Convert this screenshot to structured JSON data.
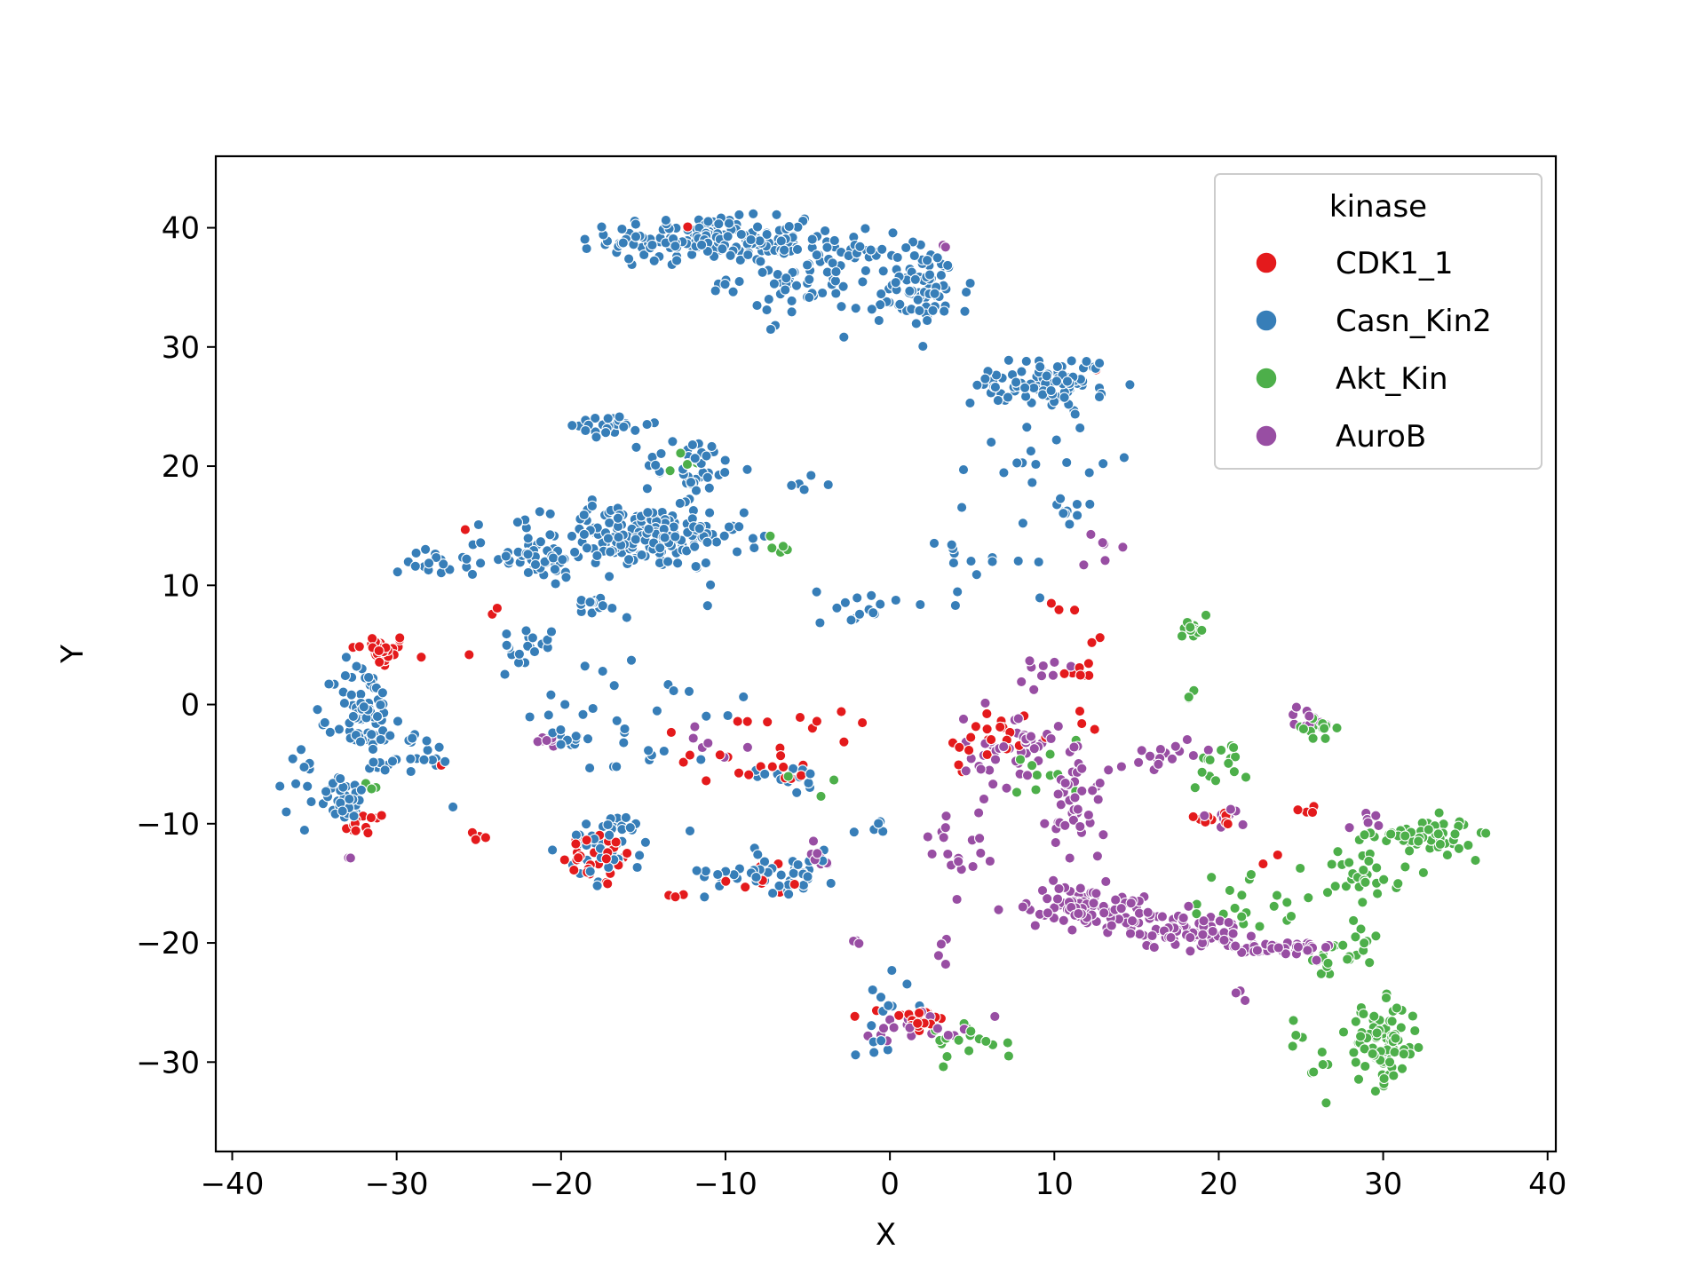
{
  "chart_data": {
    "type": "scatter",
    "title": "",
    "xlabel": "X",
    "ylabel": "Y",
    "xlim": [
      -41,
      40.5
    ],
    "ylim": [
      -37.5,
      46
    ],
    "xticks": [
      -40,
      -30,
      -20,
      -10,
      0,
      10,
      20,
      30,
      40
    ],
    "xtick_labels": [
      "−40",
      "−30",
      "−20",
      "−10",
      "0",
      "10",
      "20",
      "30",
      "40"
    ],
    "yticks": [
      -30,
      -20,
      -10,
      0,
      10,
      20,
      30,
      40
    ],
    "ytick_labels": [
      "−30",
      "−20",
      "−10",
      "0",
      "10",
      "20",
      "30",
      "40"
    ],
    "grid": false,
    "legend": {
      "title": "kinase",
      "placement": "upper right"
    },
    "series": [
      {
        "name": "CDK1_1",
        "color": "#e41a1c",
        "clusters": [
          {
            "center": [
              -31,
              4.5
            ],
            "spread": [
              1.5,
              1.2
            ],
            "count": 30
          },
          {
            "center": [
              -32,
              -10
            ],
            "spread": [
              1.2,
              0.8
            ],
            "count": 12
          },
          {
            "center": [
              -17.5,
              -13
            ],
            "spread": [
              2,
              2
            ],
            "count": 28
          },
          {
            "center": [
              -7,
              -5.5
            ],
            "spread": [
              2,
              1
            ],
            "count": 8
          },
          {
            "center": [
              -8,
              -14.5
            ],
            "spread": [
              3,
              1.2
            ],
            "count": 8
          },
          {
            "center": [
              1.5,
              -26.5
            ],
            "spread": [
              1.5,
              1.2
            ],
            "count": 22
          },
          {
            "center": [
              6,
              -3
            ],
            "spread": [
              2.5,
              2.5
            ],
            "count": 22
          },
          {
            "center": [
              12,
              2
            ],
            "spread": [
              1.5,
              5
            ],
            "count": 12
          },
          {
            "center": [
              20,
              -9.5
            ],
            "spread": [
              1.2,
              0.5
            ],
            "count": 10
          },
          {
            "center": [
              -25,
              -11
            ],
            "spread": [
              0.8,
              0.5
            ],
            "count": 4
          },
          {
            "center": [
              -10,
              -4
            ],
            "spread": [
              4,
              3
            ],
            "count": 12
          },
          {
            "center": [
              -3,
              -1.5
            ],
            "spread": [
              2.5,
              2
            ],
            "count": 6
          },
          {
            "center": [
              25.5,
              -9
            ],
            "spread": [
              1,
              0.5
            ],
            "count": 4
          },
          {
            "center": [
              -24.5,
              10
            ],
            "spread": [
              3,
              6
            ],
            "count": 6
          },
          {
            "center": [
              -13,
              -16
            ],
            "spread": [
              1,
              0.5
            ],
            "count": 3
          },
          {
            "center": [
              13,
              28.5
            ],
            "spread": [
              0.5,
              0.5
            ],
            "count": 1
          },
          {
            "center": [
              -12.5,
              40
            ],
            "spread": [
              0.3,
              0.3
            ],
            "count": 1
          },
          {
            "center": [
              11,
              8
            ],
            "spread": [
              0.8,
              0.8
            ],
            "count": 3
          },
          {
            "center": [
              23,
              -13
            ],
            "spread": [
              0.6,
              0.5
            ],
            "count": 2
          }
        ]
      },
      {
        "name": "Casn_Kin2",
        "color": "#377eb8",
        "clusters": [
          {
            "center": [
              -11,
              39
            ],
            "spread": [
              5,
              1.5
            ],
            "count": 170
          },
          {
            "center": [
              -5,
              36
            ],
            "spread": [
              4,
              3
            ],
            "count": 90
          },
          {
            "center": [
              2,
              35
            ],
            "spread": [
              2.5,
              3
            ],
            "count": 80
          },
          {
            "center": [
              8,
              27
            ],
            "spread": [
              2.5,
              1.5
            ],
            "count": 50
          },
          {
            "center": [
              11,
              27
            ],
            "spread": [
              2,
              2
            ],
            "count": 40
          },
          {
            "center": [
              9,
              21
            ],
            "spread": [
              3,
              2.5
            ],
            "count": 16
          },
          {
            "center": [
              -15,
              14
            ],
            "spread": [
              5,
              2.2
            ],
            "count": 190
          },
          {
            "center": [
              -22,
              12.5
            ],
            "spread": [
              3,
              1.5
            ],
            "count": 45
          },
          {
            "center": [
              -27,
              12
            ],
            "spread": [
              2,
              1.5
            ],
            "count": 20
          },
          {
            "center": [
              -17,
              23.5
            ],
            "spread": [
              2,
              0.8
            ],
            "count": 25
          },
          {
            "center": [
              -12,
              20
            ],
            "spread": [
              2.5,
              2
            ],
            "count": 40
          },
          {
            "center": [
              -32,
              -1
            ],
            "spread": [
              1.5,
              4
            ],
            "count": 80
          },
          {
            "center": [
              -33,
              -8
            ],
            "spread": [
              1.5,
              1.5
            ],
            "count": 35
          },
          {
            "center": [
              -29,
              -4
            ],
            "spread": [
              2,
              1.5
            ],
            "count": 20
          },
          {
            "center": [
              -17,
              -12
            ],
            "spread": [
              2.2,
              2.5
            ],
            "count": 45
          },
          {
            "center": [
              -7,
              -14
            ],
            "spread": [
              3.5,
              1.5
            ],
            "count": 50
          },
          {
            "center": [
              -6,
              -6
            ],
            "spread": [
              2,
              1
            ],
            "count": 15
          },
          {
            "center": [
              -18,
              8.5
            ],
            "spread": [
              1.5,
              0.6
            ],
            "count": 15
          },
          {
            "center": [
              -22,
              5
            ],
            "spread": [
              1.2,
              1.2
            ],
            "count": 18
          },
          {
            "center": [
              -2,
              8
            ],
            "spread": [
              2,
              1.5
            ],
            "count": 15
          },
          {
            "center": [
              -36,
              -5
            ],
            "spread": [
              1,
              4
            ],
            "count": 10
          },
          {
            "center": [
              -15,
              -1
            ],
            "spread": [
              6,
              6
            ],
            "count": 35
          },
          {
            "center": [
              0,
              -25
            ],
            "spread": [
              2,
              3
            ],
            "count": 15
          },
          {
            "center": [
              11,
              16
            ],
            "spread": [
              1,
              1
            ],
            "count": 10
          },
          {
            "center": [
              -20,
              -3
            ],
            "spread": [
              1.5,
              0.8
            ],
            "count": 10
          },
          {
            "center": [
              -5,
              18.5
            ],
            "spread": [
              1.5,
              0.5
            ],
            "count": 5
          },
          {
            "center": [
              5,
              12
            ],
            "spread": [
              3,
              4
            ],
            "count": 15
          },
          {
            "center": [
              -1,
              -10
            ],
            "spread": [
              1,
              1
            ],
            "count": 5
          }
        ]
      },
      {
        "name": "Akt_Kin",
        "color": "#4daf4a",
        "clusters": [
          {
            "center": [
              30,
              -28.5
            ],
            "spread": [
              1.8,
              2.8
            ],
            "count": 85
          },
          {
            "center": [
              32.5,
              -11
            ],
            "spread": [
              2.5,
              1.2
            ],
            "count": 60
          },
          {
            "center": [
              29,
              -14
            ],
            "spread": [
              2,
              2
            ],
            "count": 30
          },
          {
            "center": [
              27.5,
              -21
            ],
            "spread": [
              2,
              2
            ],
            "count": 25
          },
          {
            "center": [
              18.5,
              6
            ],
            "spread": [
              0.8,
              1
            ],
            "count": 15
          },
          {
            "center": [
              26,
              -2
            ],
            "spread": [
              1,
              1
            ],
            "count": 12
          },
          {
            "center": [
              5,
              -28
            ],
            "spread": [
              2.5,
              1.5
            ],
            "count": 18
          },
          {
            "center": [
              20,
              -5
            ],
            "spread": [
              1.5,
              1.5
            ],
            "count": 15
          },
          {
            "center": [
              22,
              -17
            ],
            "spread": [
              3,
              3
            ],
            "count": 20
          },
          {
            "center": [
              26,
              -29
            ],
            "spread": [
              1.5,
              3
            ],
            "count": 10
          },
          {
            "center": [
              -7,
              13
            ],
            "spread": [
              0.5,
              0.8
            ],
            "count": 5
          },
          {
            "center": [
              9,
              -5
            ],
            "spread": [
              3,
              2
            ],
            "count": 10
          },
          {
            "center": [
              -12.5,
              20
            ],
            "spread": [
              1,
              1.5
            ],
            "count": 4
          },
          {
            "center": [
              -5,
              -7
            ],
            "spread": [
              2,
              1
            ],
            "count": 4
          },
          {
            "center": [
              -32,
              -7
            ],
            "spread": [
              1,
              1
            ],
            "count": 3
          },
          {
            "center": [
              18.5,
              1.5
            ],
            "spread": [
              0.5,
              1
            ],
            "count": 3
          }
        ]
      },
      {
        "name": "AuroB",
        "color": "#984ea3",
        "clusters": [
          {
            "center": [
              12,
              -17
            ],
            "spread": [
              3,
              1.5
            ],
            "count": 90
          },
          {
            "center": [
              18,
              -19
            ],
            "spread": [
              3,
              1.2
            ],
            "count": 75
          },
          {
            "center": [
              24,
              -20.5
            ],
            "spread": [
              2.5,
              0.6
            ],
            "count": 45
          },
          {
            "center": [
              7.5,
              -4
            ],
            "spread": [
              2.5,
              2.5
            ],
            "count": 45
          },
          {
            "center": [
              11.5,
              -8
            ],
            "spread": [
              1.5,
              4
            ],
            "count": 40
          },
          {
            "center": [
              4,
              -12
            ],
            "spread": [
              1.5,
              2.5
            ],
            "count": 18
          },
          {
            "center": [
              17,
              -4
            ],
            "spread": [
              2,
              1
            ],
            "count": 15
          },
          {
            "center": [
              20.5,
              -9.5
            ],
            "spread": [
              1.2,
              0.8
            ],
            "count": 10
          },
          {
            "center": [
              2,
              -27
            ],
            "spread": [
              3,
              1.2
            ],
            "count": 20
          },
          {
            "center": [
              25.5,
              -1
            ],
            "spread": [
              1,
              0.7
            ],
            "count": 10
          },
          {
            "center": [
              -21,
              -3
            ],
            "spread": [
              1,
              0.8
            ],
            "count": 8
          },
          {
            "center": [
              -11,
              -3
            ],
            "spread": [
              2,
              1.5
            ],
            "count": 6
          },
          {
            "center": [
              -4.5,
              -13
            ],
            "spread": [
              1,
              1.5
            ],
            "count": 8
          },
          {
            "center": [
              9,
              2
            ],
            "spread": [
              3,
              2
            ],
            "count": 10
          },
          {
            "center": [
              29.5,
              -9.5
            ],
            "spread": [
              1.5,
              0.8
            ],
            "count": 6
          },
          {
            "center": [
              12.5,
              12.5
            ],
            "spread": [
              1,
              2
            ],
            "count": 6
          },
          {
            "center": [
              3,
              -21
            ],
            "spread": [
              1.5,
              2
            ],
            "count": 4
          },
          {
            "center": [
              -33,
              -12.5
            ],
            "spread": [
              0.5,
              0.5
            ],
            "count": 2
          },
          {
            "center": [
              3,
              38.5
            ],
            "spread": [
              0.5,
              0.5
            ],
            "count": 2
          },
          {
            "center": [
              21,
              -24.5
            ],
            "spread": [
              0.8,
              0.5
            ],
            "count": 3
          },
          {
            "center": [
              -2,
              -20
            ],
            "spread": [
              1,
              0.5
            ],
            "count": 3
          }
        ]
      }
    ]
  }
}
